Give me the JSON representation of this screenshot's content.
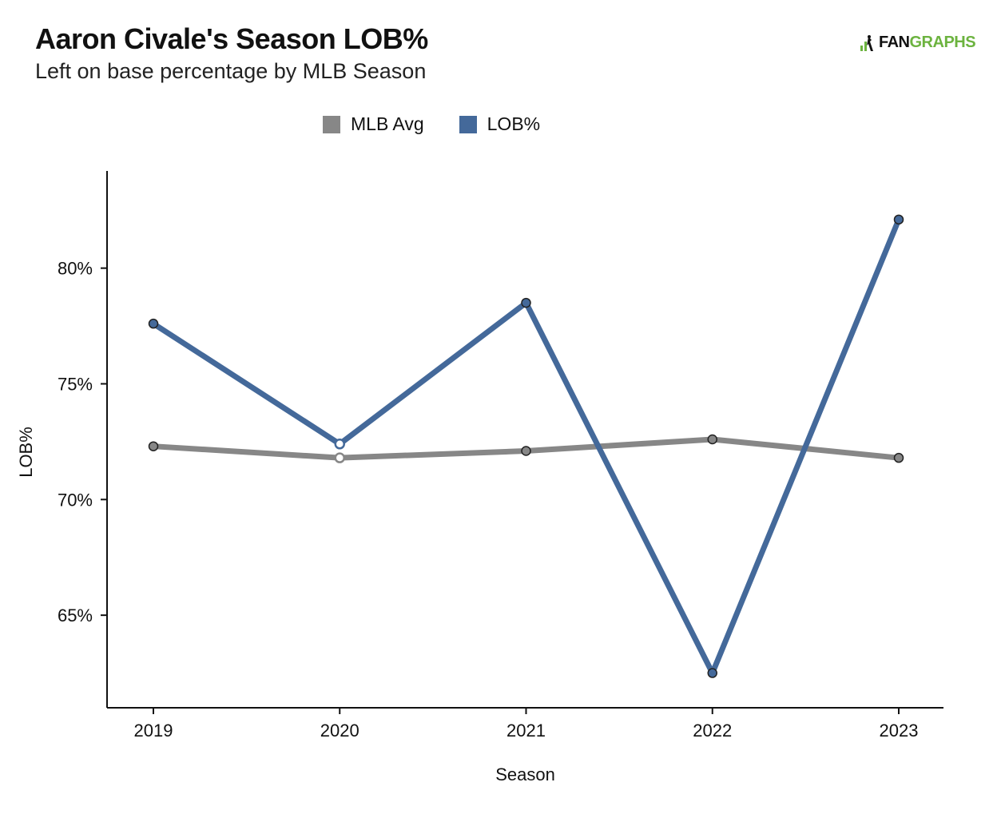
{
  "header": {
    "title": "Aaron Civale's Season LOB%",
    "subtitle": "Left on base percentage by MLB Season",
    "logo_part_a": "FAN",
    "logo_part_b": "GRAPHS"
  },
  "colors": {
    "mlb_avg": "#878787",
    "lob": "#44699a",
    "logo_green": "#6cb33f"
  },
  "chart_data": {
    "type": "line",
    "title": "Aaron Civale's Season LOB%",
    "subtitle": "Left on base percentage by MLB Season",
    "xlabel": "Season",
    "ylabel": "LOB%",
    "x": [
      "2019",
      "2020",
      "2021",
      "2022",
      "2023"
    ],
    "ylim": [
      61,
      84.2
    ],
    "yticks": [
      65,
      70,
      75,
      80
    ],
    "ytick_labels": [
      "65%",
      "70%",
      "75%",
      "80%"
    ],
    "grid": false,
    "legend_position": "top-center",
    "series": [
      {
        "name": "MLB Avg",
        "color": "#878787",
        "values": [
          72.3,
          71.8,
          72.1,
          72.6,
          71.8
        ]
      },
      {
        "name": "LOB%",
        "color": "#44699a",
        "values": [
          77.6,
          72.4,
          78.5,
          62.5,
          82.1
        ]
      }
    ],
    "hollow_points": [
      "2020"
    ]
  }
}
